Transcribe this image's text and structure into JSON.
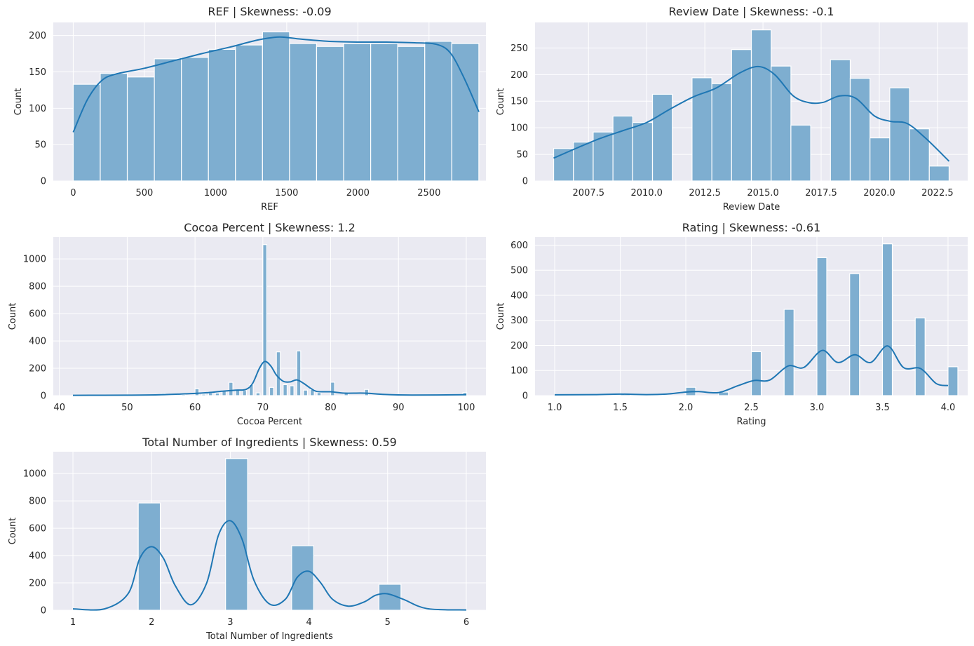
{
  "chart_data": [
    {
      "type": "bar",
      "title": "REF | Skewness: -0.09",
      "xlabel": "REF",
      "ylabel": "Count",
      "xlim": [
        -140,
        2900
      ],
      "ylim": [
        0,
        218
      ],
      "xticks": [
        0,
        500,
        1000,
        1500,
        2000,
        2500
      ],
      "xtick_labels": [
        "0",
        "500",
        "1000",
        "1500",
        "2000",
        "2500"
      ],
      "yticks": [
        0,
        50,
        100,
        150,
        200
      ],
      "ytick_labels": [
        "0",
        "50",
        "100",
        "150",
        "200"
      ],
      "bins": [
        {
          "x0": 0,
          "x1": 190,
          "count": 133
        },
        {
          "x0": 190,
          "x1": 380,
          "count": 148
        },
        {
          "x0": 380,
          "x1": 570,
          "count": 143
        },
        {
          "x0": 570,
          "x1": 760,
          "count": 168
        },
        {
          "x0": 760,
          "x1": 950,
          "count": 170
        },
        {
          "x0": 950,
          "x1": 1140,
          "count": 181
        },
        {
          "x0": 1140,
          "x1": 1330,
          "count": 187
        },
        {
          "x0": 1330,
          "x1": 1520,
          "count": 205
        },
        {
          "x0": 1520,
          "x1": 1710,
          "count": 189
        },
        {
          "x0": 1710,
          "x1": 1900,
          "count": 185
        },
        {
          "x0": 1900,
          "x1": 2090,
          "count": 189
        },
        {
          "x0": 2090,
          "x1": 2280,
          "count": 189
        },
        {
          "x0": 2280,
          "x1": 2470,
          "count": 185
        },
        {
          "x0": 2470,
          "x1": 2660,
          "count": 192
        },
        {
          "x0": 2660,
          "x1": 2850,
          "count": 189
        }
      ],
      "kde": {
        "x": [
          0,
          100,
          200,
          300,
          500,
          700,
          900,
          1100,
          1300,
          1450,
          1600,
          1800,
          2000,
          2200,
          2400,
          2550,
          2650,
          2750,
          2850
        ],
        "y": [
          67,
          112,
          138,
          147,
          155,
          165,
          175,
          184,
          194,
          198,
          195,
          192,
          191,
          191,
          190,
          188,
          176,
          140,
          95
        ]
      }
    },
    {
      "type": "bar",
      "title": "Review Date | Skewness: -0.1",
      "xlabel": "Review Date",
      "ylabel": "Count",
      "xlim": [
        2005.2,
        2023.8
      ],
      "ylim": [
        0,
        298
      ],
      "xticks": [
        2007.5,
        2010.0,
        2012.5,
        2015.0,
        2017.5,
        2020.0,
        2022.5
      ],
      "xtick_labels": [
        "2007.5",
        "2010.0",
        "2012.5",
        "2015.0",
        "2017.5",
        "2020.0",
        "2022.5"
      ],
      "yticks": [
        0,
        50,
        100,
        150,
        200,
        250
      ],
      "ytick_labels": [
        "0",
        "50",
        "100",
        "150",
        "200",
        "250"
      ],
      "bins": [
        {
          "x0": 2006.0,
          "x1": 2006.85,
          "count": 61
        },
        {
          "x0": 2006.85,
          "x1": 2007.7,
          "count": 73
        },
        {
          "x0": 2007.7,
          "x1": 2008.55,
          "count": 92
        },
        {
          "x0": 2008.55,
          "x1": 2009.4,
          "count": 122
        },
        {
          "x0": 2009.4,
          "x1": 2010.25,
          "count": 110
        },
        {
          "x0": 2010.25,
          "x1": 2011.1,
          "count": 163
        },
        {
          "x0": 2011.95,
          "x1": 2012.8,
          "count": 194
        },
        {
          "x0": 2012.8,
          "x1": 2013.65,
          "count": 183
        },
        {
          "x0": 2013.65,
          "x1": 2014.5,
          "count": 247
        },
        {
          "x0": 2014.5,
          "x1": 2015.35,
          "count": 284
        },
        {
          "x0": 2015.35,
          "x1": 2016.2,
          "count": 216
        },
        {
          "x0": 2016.2,
          "x1": 2017.05,
          "count": 105
        },
        {
          "x0": 2017.9,
          "x1": 2018.75,
          "count": 228
        },
        {
          "x0": 2018.75,
          "x1": 2019.6,
          "count": 193
        },
        {
          "x0": 2019.6,
          "x1": 2020.45,
          "count": 81
        },
        {
          "x0": 2020.45,
          "x1": 2021.3,
          "count": 175
        },
        {
          "x0": 2021.3,
          "x1": 2022.15,
          "count": 98
        },
        {
          "x0": 2022.15,
          "x1": 2023.0,
          "count": 28
        }
      ],
      "kde": {
        "x": [
          2006.0,
          2007.0,
          2008.0,
          2009.0,
          2010.0,
          2011.0,
          2012.0,
          2013.0,
          2014.0,
          2014.8,
          2015.5,
          2016.3,
          2017.0,
          2017.6,
          2018.3,
          2019.0,
          2019.8,
          2020.5,
          2021.2,
          2022.0,
          2023.0
        ],
        "y": [
          43,
          62,
          80,
          95,
          110,
          135,
          158,
          175,
          203,
          215,
          200,
          160,
          147,
          148,
          160,
          155,
          122,
          112,
          108,
          80,
          37
        ]
      }
    },
    {
      "type": "bar",
      "title": "Cocoa Percent | Skewness: 1.2",
      "xlabel": "Cocoa Percent",
      "ylabel": "Count",
      "xlim": [
        39.1,
        102.9
      ],
      "ylim": [
        0,
        1160
      ],
      "xticks": [
        40,
        50,
        60,
        70,
        80,
        90,
        100
      ],
      "xtick_labels": [
        "40",
        "50",
        "60",
        "70",
        "80",
        "90",
        "100"
      ],
      "yticks": [
        0,
        200,
        400,
        600,
        800,
        1000
      ],
      "ytick_labels": [
        "0",
        "200",
        "400",
        "600",
        "800",
        "1000"
      ],
      "bins": [
        {
          "x0": 42.0,
          "x1": 42.58,
          "count": 2
        },
        {
          "x0": 55.0,
          "x1": 55.58,
          "count": 16
        },
        {
          "x0": 56.0,
          "x1": 56.58,
          "count": 4
        },
        {
          "x0": 58.0,
          "x1": 58.58,
          "count": 8
        },
        {
          "x0": 60.0,
          "x1": 60.58,
          "count": 50
        },
        {
          "x0": 61.0,
          "x1": 61.58,
          "count": 10
        },
        {
          "x0": 62.0,
          "x1": 62.58,
          "count": 20
        },
        {
          "x0": 63.0,
          "x1": 63.58,
          "count": 18
        },
        {
          "x0": 64.0,
          "x1": 64.58,
          "count": 36
        },
        {
          "x0": 65.0,
          "x1": 65.58,
          "count": 97
        },
        {
          "x0": 66.0,
          "x1": 66.58,
          "count": 40
        },
        {
          "x0": 67.0,
          "x1": 67.58,
          "count": 38
        },
        {
          "x0": 68.0,
          "x1": 68.58,
          "count": 80
        },
        {
          "x0": 69.0,
          "x1": 69.58,
          "count": 20
        },
        {
          "x0": 70.0,
          "x1": 70.58,
          "count": 1105
        },
        {
          "x0": 71.0,
          "x1": 71.58,
          "count": 60
        },
        {
          "x0": 72.0,
          "x1": 72.58,
          "count": 320
        },
        {
          "x0": 73.0,
          "x1": 73.58,
          "count": 80
        },
        {
          "x0": 74.0,
          "x1": 74.58,
          "count": 72
        },
        {
          "x0": 75.0,
          "x1": 75.58,
          "count": 327
        },
        {
          "x0": 76.0,
          "x1": 76.58,
          "count": 40
        },
        {
          "x0": 77.0,
          "x1": 77.58,
          "count": 44
        },
        {
          "x0": 78.0,
          "x1": 78.58,
          "count": 22
        },
        {
          "x0": 80.0,
          "x1": 80.58,
          "count": 98
        },
        {
          "x0": 82.0,
          "x1": 82.58,
          "count": 16
        },
        {
          "x0": 85.0,
          "x1": 85.58,
          "count": 45
        },
        {
          "x0": 88.0,
          "x1": 88.58,
          "count": 5
        },
        {
          "x0": 90.0,
          "x1": 90.58,
          "count": 6
        },
        {
          "x0": 99.5,
          "x1": 100.08,
          "count": 22
        }
      ],
      "kde": {
        "x": [
          42,
          50,
          55,
          60,
          62,
          64,
          66,
          67.5,
          68.5,
          69.5,
          70.3,
          71.2,
          72.0,
          73.0,
          74.0,
          75.0,
          76.0,
          77.0,
          78.0,
          80.0,
          82.0,
          85.0,
          88.0,
          92.0,
          100.0
        ],
        "y": [
          2,
          3,
          6,
          16,
          22,
          32,
          40,
          45,
          90,
          200,
          250,
          215,
          150,
          105,
          100,
          115,
          90,
          55,
          30,
          28,
          18,
          18,
          8,
          4,
          6
        ]
      }
    },
    {
      "type": "bar",
      "title": "Rating | Skewness: -0.61",
      "xlabel": "Rating",
      "ylabel": "Count",
      "xlim": [
        0.85,
        4.15
      ],
      "ylim": [
        0,
        632
      ],
      "xticks": [
        1.0,
        1.5,
        2.0,
        2.5,
        3.0,
        3.5,
        4.0
      ],
      "xtick_labels": [
        "1.0",
        "1.5",
        "2.0",
        "2.5",
        "3.0",
        "3.5",
        "4.0"
      ],
      "yticks": [
        0,
        100,
        200,
        300,
        400,
        500,
        600
      ],
      "ytick_labels": [
        "0",
        "100",
        "200",
        "300",
        "400",
        "500",
        "600"
      ],
      "bins": [
        {
          "x0": 1.0,
          "x1": 1.075,
          "count": 4
        },
        {
          "x0": 1.5,
          "x1": 1.575,
          "count": 5
        },
        {
          "x0": 1.75,
          "x1": 1.825,
          "count": 3
        },
        {
          "x0": 2.0,
          "x1": 2.075,
          "count": 33
        },
        {
          "x0": 2.25,
          "x1": 2.325,
          "count": 14
        },
        {
          "x0": 2.5,
          "x1": 2.575,
          "count": 175
        },
        {
          "x0": 2.75,
          "x1": 2.825,
          "count": 344
        },
        {
          "x0": 3.0,
          "x1": 3.075,
          "count": 550
        },
        {
          "x0": 3.25,
          "x1": 3.325,
          "count": 486
        },
        {
          "x0": 3.5,
          "x1": 3.575,
          "count": 605
        },
        {
          "x0": 3.75,
          "x1": 3.825,
          "count": 310
        },
        {
          "x0": 4.0,
          "x1": 4.075,
          "count": 115
        }
      ],
      "kde": {
        "x": [
          1.0,
          1.3,
          1.5,
          1.7,
          1.85,
          2.0,
          2.1,
          2.25,
          2.4,
          2.52,
          2.64,
          2.78,
          2.9,
          3.04,
          3.16,
          3.29,
          3.41,
          3.54,
          3.66,
          3.79,
          3.91,
          4.0
        ],
        "y": [
          3,
          4,
          6,
          4,
          6,
          14,
          16,
          12,
          40,
          60,
          62,
          118,
          112,
          180,
          132,
          163,
          132,
          198,
          112,
          108,
          48,
          40
        ]
      }
    },
    {
      "type": "bar",
      "title": "Total Number of Ingredients | Skewness: 0.59",
      "xlabel": "Total Number of Ingredients",
      "ylabel": "Count",
      "xlim": [
        0.75,
        6.25
      ],
      "ylim": [
        0,
        1160
      ],
      "xticks": [
        1,
        2,
        3,
        4,
        5,
        6
      ],
      "xtick_labels": [
        "1",
        "2",
        "3",
        "4",
        "5",
        "6"
      ],
      "yticks": [
        0,
        200,
        400,
        600,
        800,
        1000
      ],
      "ytick_labels": [
        "0",
        "200",
        "400",
        "600",
        "800",
        "1000"
      ],
      "bins": [
        {
          "x0": 1.0,
          "x1": 1.05,
          "count": 5
        },
        {
          "x0": 1.83,
          "x1": 2.11,
          "count": 785
        },
        {
          "x0": 2.94,
          "x1": 3.22,
          "count": 1110
        },
        {
          "x0": 3.78,
          "x1": 4.06,
          "count": 472
        },
        {
          "x0": 4.89,
          "x1": 5.17,
          "count": 190
        }
      ],
      "kde": {
        "x": [
          1.0,
          1.4,
          1.7,
          1.85,
          2.0,
          2.15,
          2.3,
          2.5,
          2.7,
          2.85,
          3.0,
          3.15,
          3.3,
          3.5,
          3.7,
          3.85,
          4.0,
          4.15,
          4.3,
          4.5,
          4.7,
          4.85,
          5.0,
          5.2,
          5.5,
          6.0
        ],
        "y": [
          10,
          10,
          120,
          380,
          465,
          380,
          180,
          40,
          200,
          550,
          655,
          520,
          220,
          45,
          80,
          240,
          285,
          200,
          80,
          30,
          60,
          110,
          120,
          80,
          12,
          2
        ]
      }
    }
  ]
}
